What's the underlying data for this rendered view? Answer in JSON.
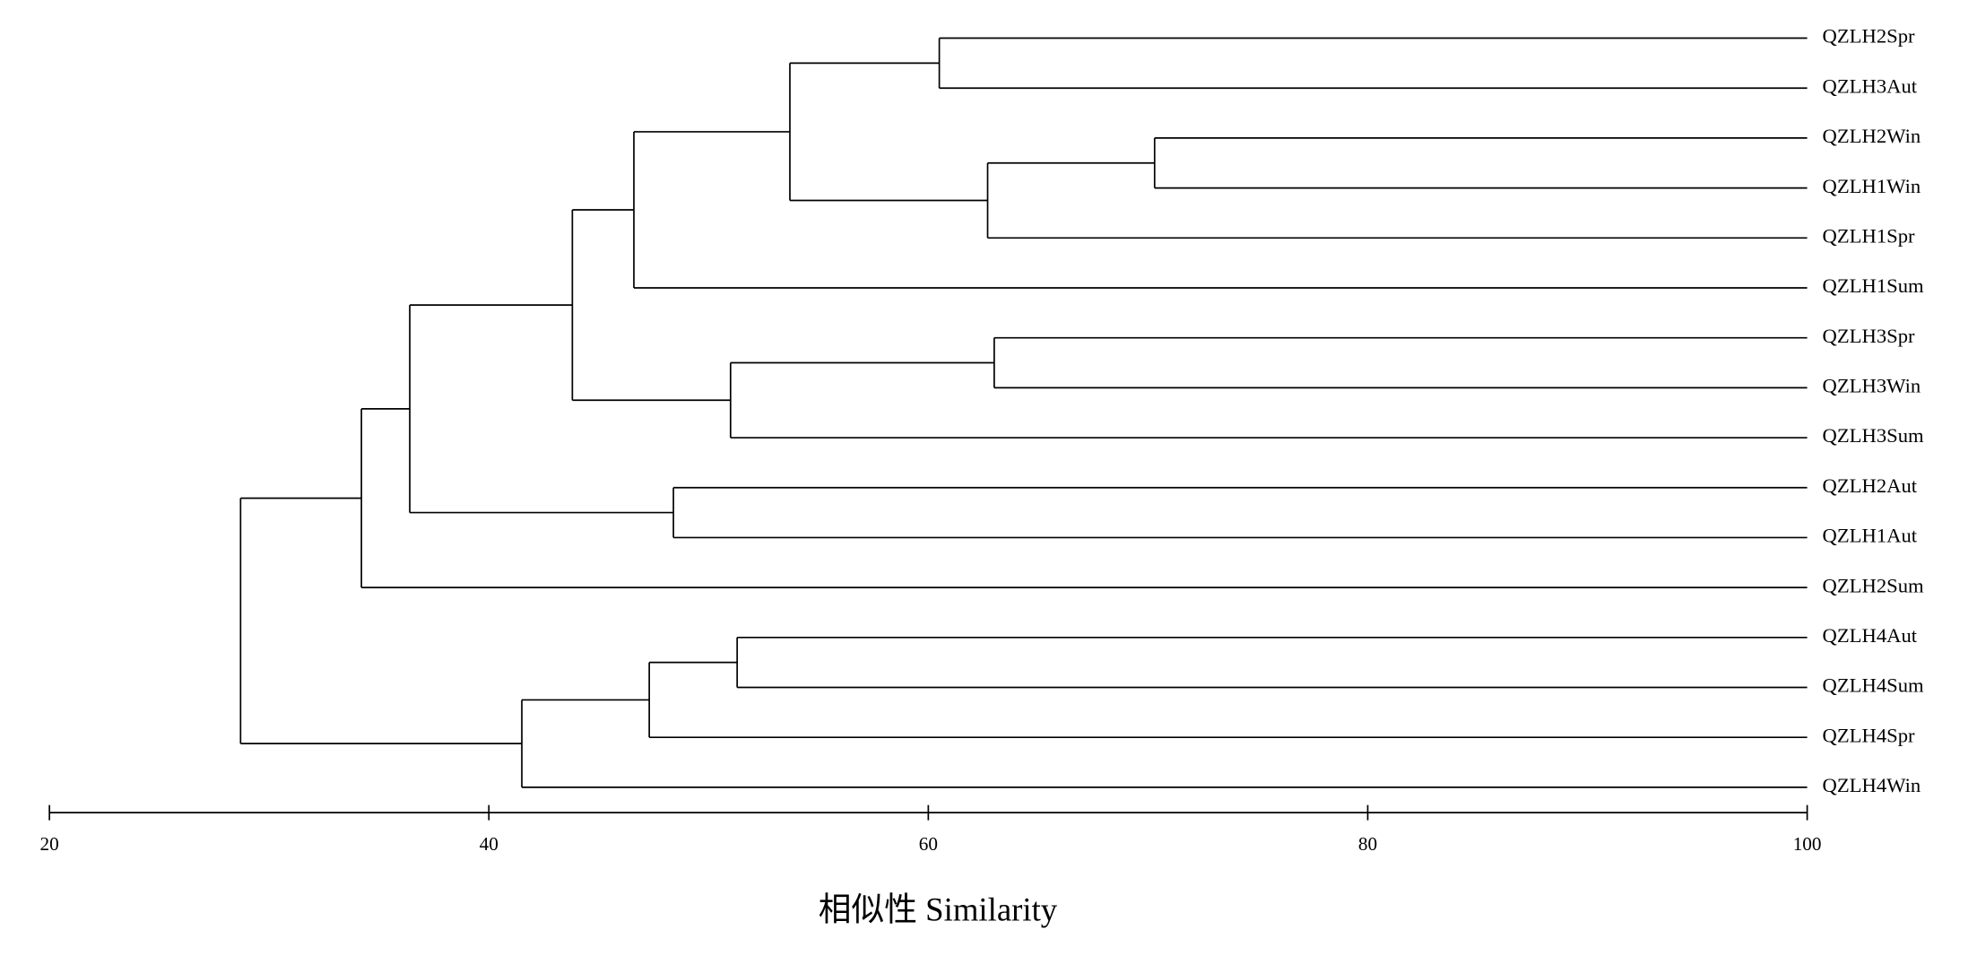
{
  "chart_data": {
    "type": "dendrogram",
    "xlabel": "相似性  Similarity",
    "xlim": [
      20,
      100
    ],
    "xticks": [
      20,
      40,
      60,
      80,
      100
    ],
    "tree": {
      "value": 28.7,
      "children": [
        {
          "value": 34.2,
          "children": [
            {
              "value": 36.4,
              "children": [
                {
                  "value": 43.8,
                  "children": [
                    {
                      "value": 46.6,
                      "children": [
                        {
                          "value": 53.7,
                          "children": [
                            {
                              "value": 60.5,
                              "children": [
                                "QZLH2Spr",
                                "QZLH3Aut"
                              ]
                            },
                            {
                              "value": 62.7,
                              "children": [
                                {
                                  "value": 70.3,
                                  "children": [
                                    "QZLH2Win",
                                    "QZLH1Win"
                                  ]
                                },
                                "QZLH1Spr"
                              ]
                            }
                          ]
                        },
                        "QZLH1Sum"
                      ]
                    },
                    {
                      "value": 51.0,
                      "children": [
                        {
                          "value": 63.0,
                          "children": [
                            "QZLH3Spr",
                            "QZLH3Win"
                          ]
                        },
                        "QZLH3Sum"
                      ]
                    }
                  ]
                },
                {
                  "value": 48.4,
                  "children": [
                    "QZLH2Aut",
                    "QZLH1Aut"
                  ]
                }
              ]
            },
            "QZLH2Sum"
          ]
        },
        {
          "value": 41.5,
          "children": [
            {
              "value": 47.3,
              "children": [
                {
                  "value": 51.3,
                  "children": [
                    "QZLH4Aut",
                    "QZLH4Sum"
                  ]
                },
                "QZLH4Spr"
              ]
            },
            "QZLH4Win"
          ]
        }
      ]
    }
  }
}
